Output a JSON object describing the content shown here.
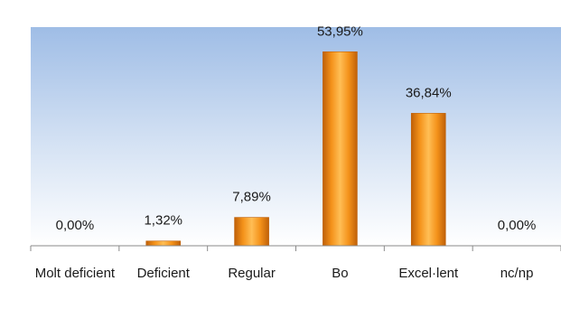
{
  "chart_data": {
    "type": "bar",
    "categories": [
      "Molt deficient",
      "Deficient",
      "Regular",
      "Bo",
      "Excel·lent",
      "nc/np"
    ],
    "values": [
      0.0,
      1.32,
      7.89,
      53.95,
      36.84,
      0.0
    ],
    "value_labels": [
      "0,00%",
      "1,32%",
      "7,89%",
      "53,95%",
      "36,84%",
      "0,00%"
    ],
    "title": "",
    "xlabel": "",
    "ylabel": "",
    "ylim": [
      0,
      60
    ],
    "grid": false,
    "legend": "none",
    "colors": {
      "plot_background_top": "#9fbde6",
      "plot_background_bottom": "#ffffff",
      "bar_light": "#ffbe55",
      "bar_mid": "#f4921a",
      "bar_dark": "#bf6008",
      "axis": "#8a8a8a"
    }
  }
}
